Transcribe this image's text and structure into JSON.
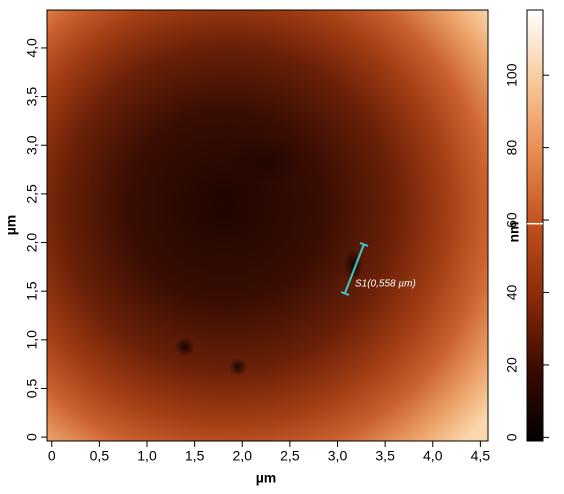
{
  "chart_data": {
    "type": "heatmap",
    "x_label": "µm",
    "y_label": "µm",
    "colorbar_label": "nm",
    "annotation": "S1(0,558 µm)",
    "xlim": [
      -0.05,
      4.58
    ],
    "xticks": [
      0,
      {
        "value": 0.5,
        "label": "0,5"
      },
      {
        "value": 1,
        "label": "1,0"
      },
      {
        "value": 1.5,
        "label": "1,5"
      },
      {
        "value": 2,
        "label": "2,0"
      },
      {
        "value": 2.5,
        "label": "2,5"
      },
      {
        "value": 3,
        "label": "3,0"
      },
      {
        "value": 3.5,
        "label": "3,5"
      },
      {
        "value": 4,
        "label": "4,0"
      },
      {
        "value": 4.5,
        "label": "4,5"
      }
    ],
    "ylim": [
      -0.04,
      4.39
    ],
    "yticks": [
      0,
      {
        "value": 0.5,
        "label": "0,5"
      },
      {
        "value": 1,
        "label": "1,0"
      },
      {
        "value": 1.5,
        "label": "1,5"
      },
      {
        "value": 2,
        "label": "2,0"
      },
      {
        "value": 2.5,
        "label": "2,5"
      },
      {
        "value": 3,
        "label": "3,0"
      },
      {
        "value": 3.5,
        "label": "3,5"
      },
      {
        "value": 4,
        "label": "4,0"
      }
    ],
    "zlim": [
      -1,
      118
    ],
    "zticks": [
      0,
      20,
      40,
      60,
      80,
      100
    ],
    "zmarker": 59,
    "colors": [
      "#000000",
      "#3a0a00",
      "#8a2a08",
      "#c0501e",
      "#e88a50",
      "#f8c89a",
      "#ffffff"
    ]
  }
}
